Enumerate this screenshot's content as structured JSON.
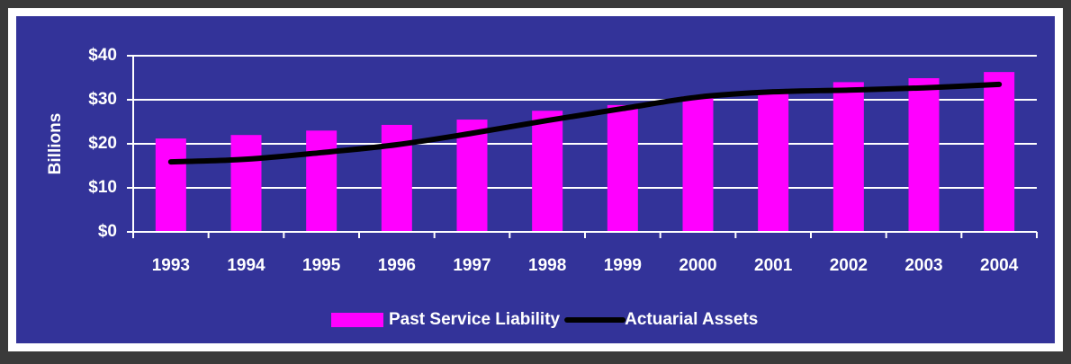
{
  "chart_data": {
    "type": "bar",
    "y_label": "Billions",
    "categories": [
      "1993",
      "1994",
      "1995",
      "1996",
      "1997",
      "1998",
      "1999",
      "2000",
      "2001",
      "2002",
      "2003",
      "2004"
    ],
    "series": [
      {
        "name": "Past Service Liability",
        "type": "bar",
        "color": "#ff00ff",
        "values": [
          21.2,
          22,
          23,
          24.3,
          25.5,
          27.5,
          28.8,
          30.8,
          31.6,
          34,
          34.9,
          36.3
        ]
      },
      {
        "name": "Actuarial Assets",
        "type": "line",
        "color": "#000000",
        "values": [
          15.9,
          16.5,
          18,
          19.8,
          22.4,
          25.3,
          28,
          30.6,
          31.8,
          32.2,
          32.7,
          33.5
        ]
      }
    ],
    "ylim": [
      0,
      40
    ],
    "yticks": [
      {
        "value": 0,
        "label": "$0"
      },
      {
        "value": 10,
        "label": "$10"
      },
      {
        "value": 20,
        "label": "$20"
      },
      {
        "value": 30,
        "label": "$30"
      },
      {
        "value": 40,
        "label": "$40"
      }
    ],
    "grid": true,
    "legend": "bottom"
  }
}
